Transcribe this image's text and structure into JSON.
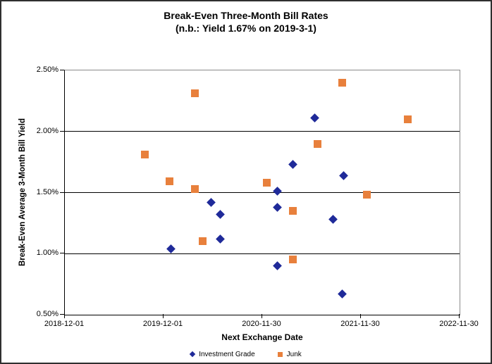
{
  "title": {
    "line1": "Break-Even Three-Month Bill Rates",
    "line2": "(n.b.: Yield 1.67% on 2019-3-1)"
  },
  "chart_data": {
    "type": "scatter",
    "title": "Break-Even Three-Month Bill Rates",
    "subtitle": "(n.b.: Yield 1.67% on 2019-3-1)",
    "xlabel": "Next Exchange Date",
    "ylabel": "Break-Even Average 3-Month Bill Yield",
    "grid": "horizontal",
    "legend_position": "bottom",
    "x_axis": {
      "type": "date",
      "min": "2018-12-01",
      "max": "2022-11-30",
      "tick_labels": [
        "2018-12-01",
        "2019-12-01",
        "2020-11-30",
        "2021-11-30",
        "2022-11-30"
      ]
    },
    "y_axis": {
      "min": 0.5,
      "max": 2.5,
      "tick_labels": [
        "2.50%",
        "2.00%",
        "1.50%",
        "1.00%",
        "0.50%"
      ],
      "tick_values": [
        2.5,
        2.0,
        1.5,
        1.0,
        0.5
      ],
      "unit": "%"
    },
    "series": [
      {
        "name": "Investment Grade",
        "marker": "diamond",
        "color": "#1f2a99",
        "points": [
          {
            "date": "2019-12-29",
            "value": 1.04
          },
          {
            "date": "2020-05-25",
            "value": 1.42
          },
          {
            "date": "2020-06-28",
            "value": 1.32
          },
          {
            "date": "2020-06-28",
            "value": 1.12
          },
          {
            "date": "2021-01-24",
            "value": 1.51
          },
          {
            "date": "2021-01-26",
            "value": 1.38
          },
          {
            "date": "2021-01-24",
            "value": 0.9
          },
          {
            "date": "2021-03-24",
            "value": 1.73
          },
          {
            "date": "2021-06-13",
            "value": 2.11
          },
          {
            "date": "2021-08-19",
            "value": 1.28
          },
          {
            "date": "2021-09-22",
            "value": 0.67
          },
          {
            "date": "2021-09-26",
            "value": 1.64
          }
        ]
      },
      {
        "name": "Junk",
        "marker": "square",
        "color": "#e8803c",
        "points": [
          {
            "date": "2019-09-22",
            "value": 1.81
          },
          {
            "date": "2019-12-24",
            "value": 1.59
          },
          {
            "date": "2020-03-27",
            "value": 2.31
          },
          {
            "date": "2020-03-27",
            "value": 1.53
          },
          {
            "date": "2020-04-24",
            "value": 1.1
          },
          {
            "date": "2020-12-16",
            "value": 1.58
          },
          {
            "date": "2021-03-24",
            "value": 1.35
          },
          {
            "date": "2021-03-24",
            "value": 0.95
          },
          {
            "date": "2021-06-23",
            "value": 1.9
          },
          {
            "date": "2021-09-22",
            "value": 2.4
          },
          {
            "date": "2021-12-23",
            "value": 1.48
          },
          {
            "date": "2022-05-22",
            "value": 2.1
          }
        ]
      }
    ]
  },
  "colors": {
    "investment_grade": "#1f2a99",
    "junk": "#e8803c",
    "gridline": "#000000",
    "plot_border": "#8a8a8a",
    "text": "#000000",
    "background": "#ffffff"
  }
}
